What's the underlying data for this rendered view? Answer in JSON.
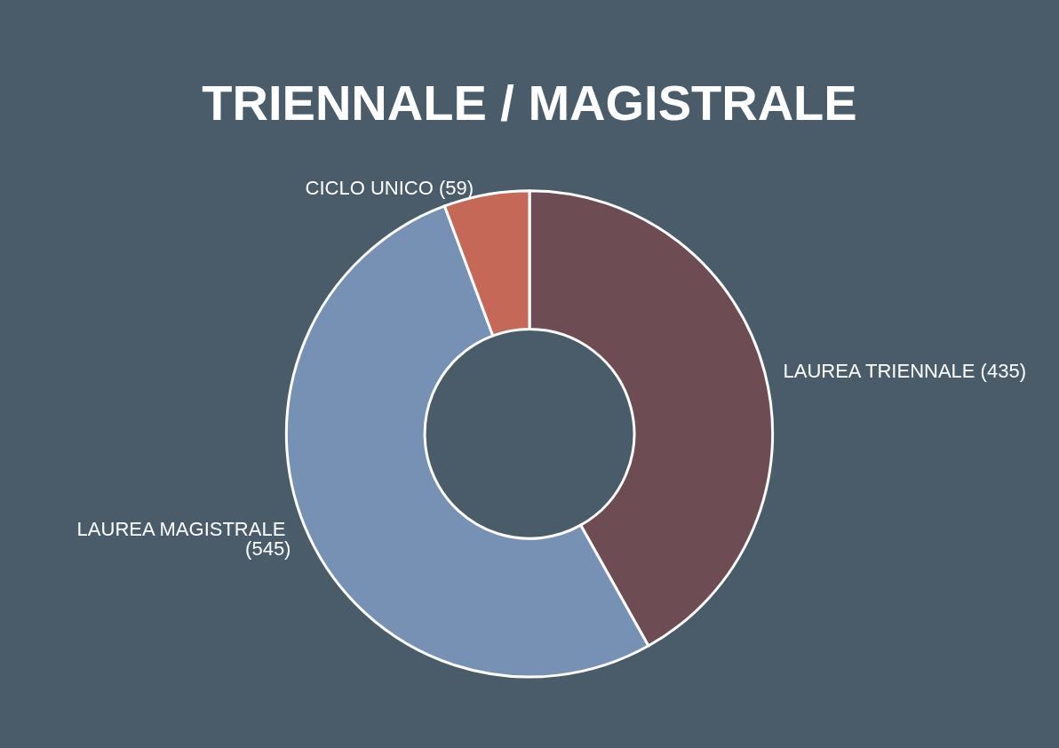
{
  "chart_data": {
    "type": "donut",
    "title": "TRIENNALE / MAGISTRALE",
    "categories": [
      "LAUREA TRIENNALE",
      "LAUREA MAGISTRALE",
      "CICLO UNICO"
    ],
    "values": [
      435,
      545,
      59
    ],
    "value_labels": [
      "(435)",
      "(545)",
      "(59)"
    ],
    "colors": [
      "#6e4c53",
      "#7791b5",
      "#c66858"
    ],
    "legend": false
  }
}
